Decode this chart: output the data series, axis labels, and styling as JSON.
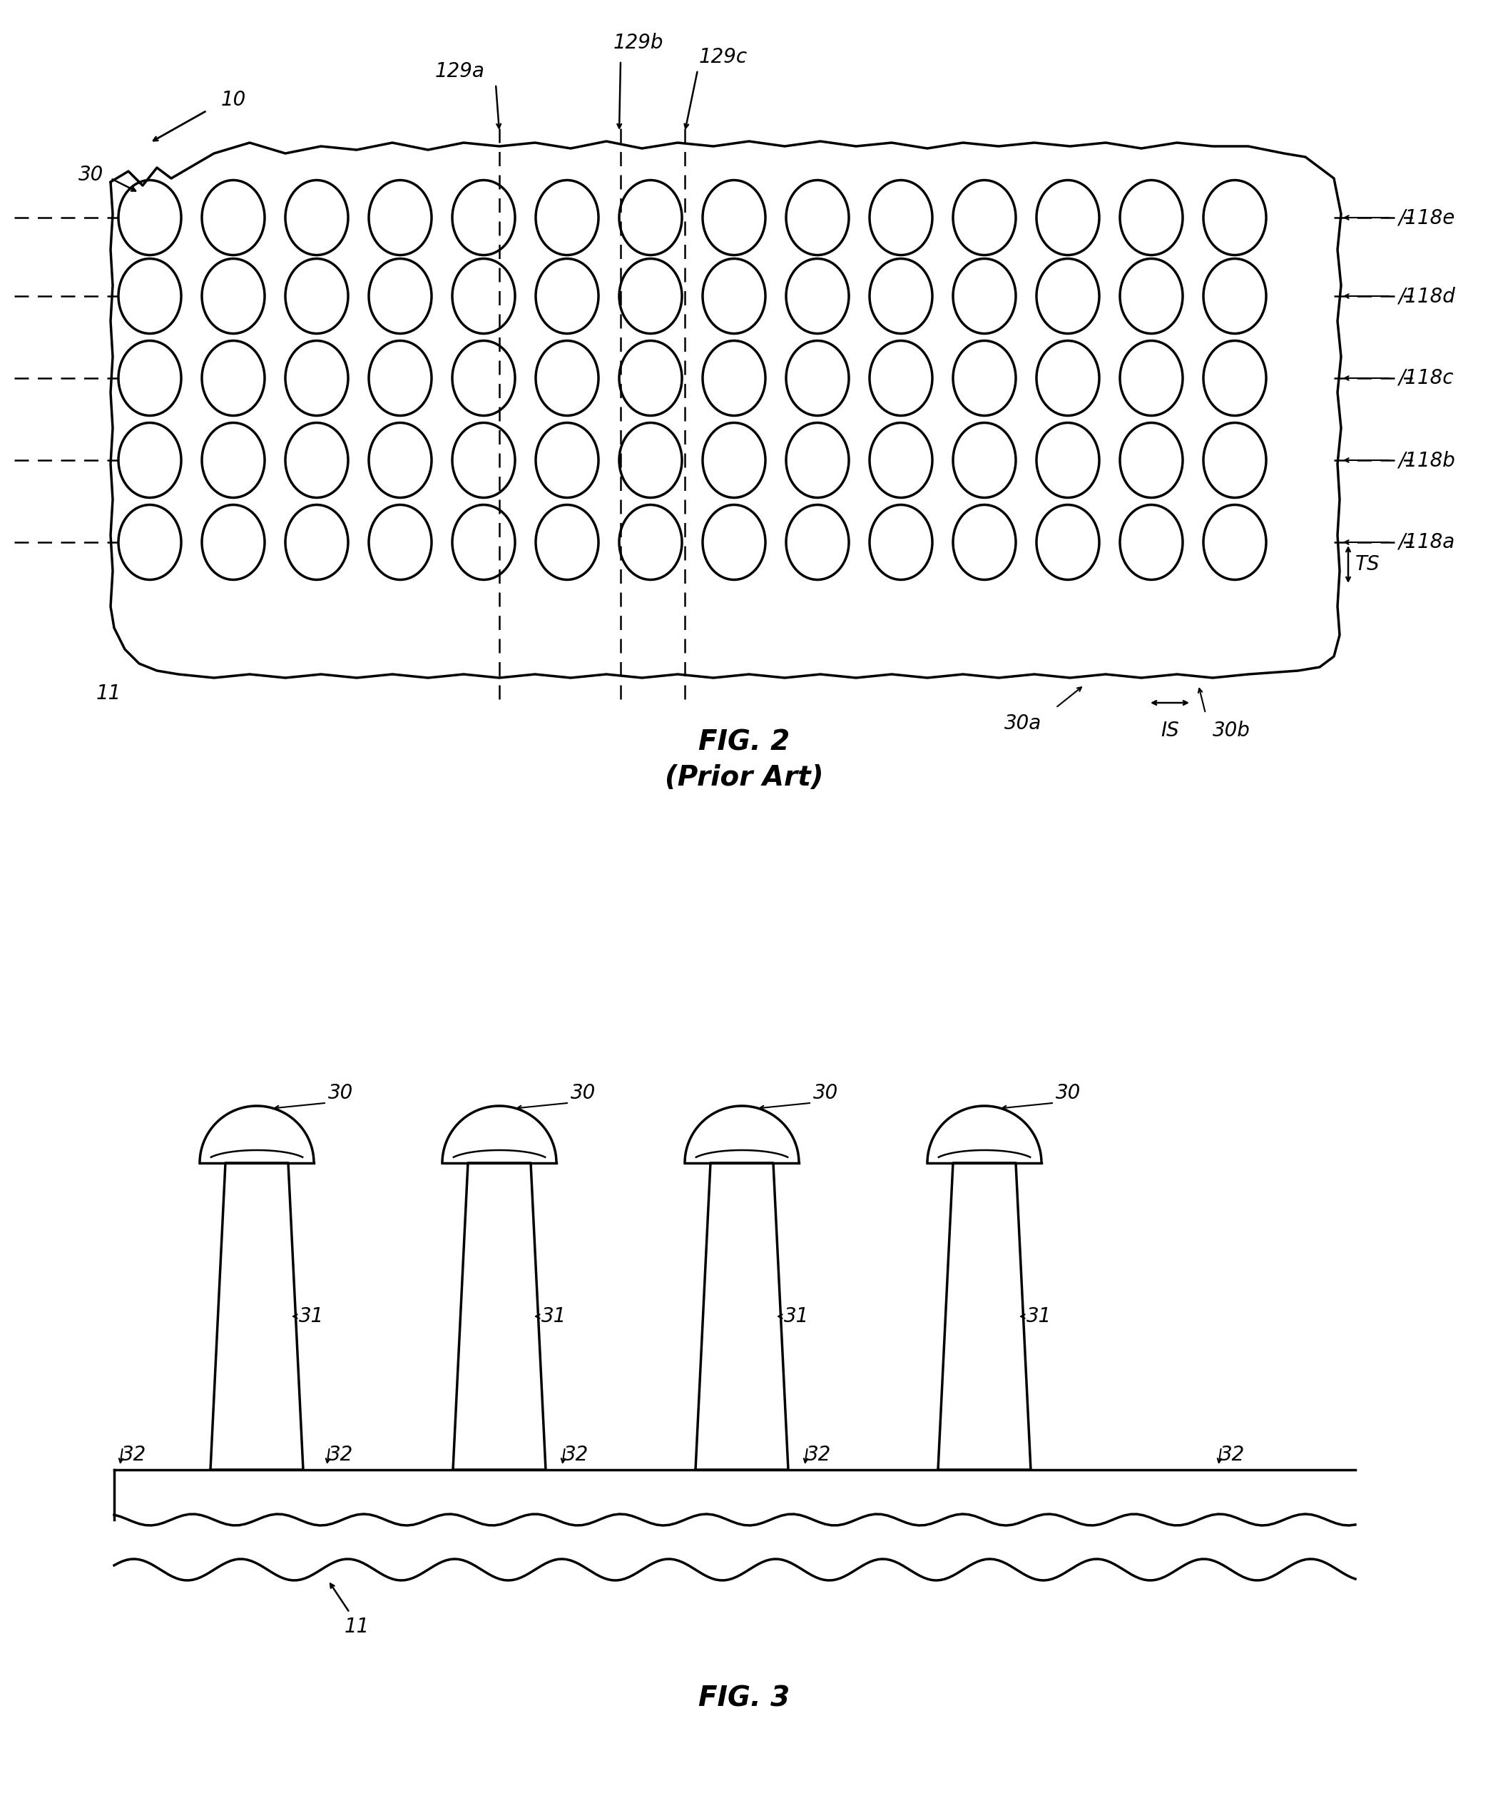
{
  "fig_width": 20.86,
  "fig_height": 25.2,
  "bg_color": "#ffffff",
  "line_color": "#000000",
  "fig2_title": "FIG. 2",
  "fig2_subtitle": "(Prior Art)",
  "fig3_title": "FIG. 3",
  "label_10": "10",
  "label_11": "11",
  "label_30": "30",
  "label_30a": "30a",
  "label_30b": "30b",
  "label_31": "31",
  "label_32": "32",
  "label_118a": "118a",
  "label_118b": "118b",
  "label_118c": "118c",
  "label_118d": "118d",
  "label_118e": "118e",
  "label_129a": "129a",
  "label_129b": "129b",
  "label_129c": "129c",
  "label_IS": "IS",
  "label_TS": "TS"
}
